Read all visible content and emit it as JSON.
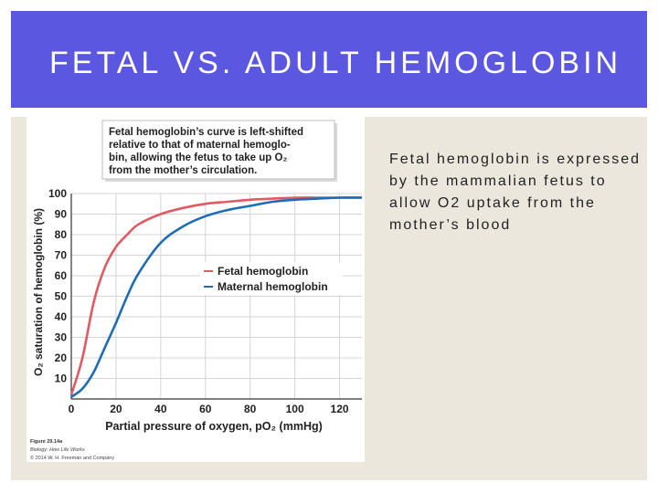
{
  "slide": {
    "title": "FETAL VS. ADULT HEMOGLOBIN",
    "body_text": "Fetal hemoglobin is expressed by the mammalian fetus to allow O2 uptake from the mother’s blood"
  },
  "callout": {
    "lines": [
      "Fetal hemoglobin’s curve is left-shifted",
      "relative to that of maternal hemoglo-",
      "bin, allowing the fetus to take up O₂",
      "from the mother’s circulation."
    ]
  },
  "figure_credit": {
    "lines": [
      "Figure 29.14a",
      "Biology: How Life Works",
      "© 2014 W. H. Freeman and Company"
    ]
  },
  "colors": {
    "title_bar": "#5b57e0",
    "fetal": "#e05a64",
    "maternal": "#1e6cb5",
    "panel": "#ece7dc"
  },
  "chart_data": {
    "type": "line",
    "xlabel": "Partial pressure of oxygen, pO₂ (mmHg)",
    "ylabel": "O₂ saturation of hemoglobin (%)",
    "xlim": [
      0,
      130
    ],
    "ylim": [
      0,
      100
    ],
    "x_ticks": [
      0,
      20,
      40,
      60,
      80,
      100,
      120
    ],
    "y_ticks": [
      10,
      20,
      30,
      40,
      50,
      60,
      70,
      80,
      90,
      100
    ],
    "grid": true,
    "legend_position": "center-right",
    "series": [
      {
        "name": "Fetal hemoglobin",
        "color": "#e05a64",
        "x": [
          0,
          5,
          10,
          15,
          20,
          25,
          30,
          40,
          50,
          60,
          70,
          80,
          90,
          100,
          110,
          120,
          130
        ],
        "y": [
          2,
          20,
          47,
          64,
          74,
          80,
          85,
          90,
          93,
          95,
          96,
          97,
          97.5,
          98,
          98,
          98,
          98
        ]
      },
      {
        "name": "Maternal hemoglobin",
        "color": "#1e6cb5",
        "x": [
          0,
          5,
          10,
          15,
          20,
          25,
          30,
          40,
          50,
          60,
          70,
          80,
          90,
          100,
          110,
          120,
          130
        ],
        "y": [
          1,
          5,
          13,
          25,
          37,
          50,
          61,
          76,
          84,
          89,
          92,
          94,
          96,
          97,
          97.5,
          98,
          98
        ]
      }
    ]
  }
}
